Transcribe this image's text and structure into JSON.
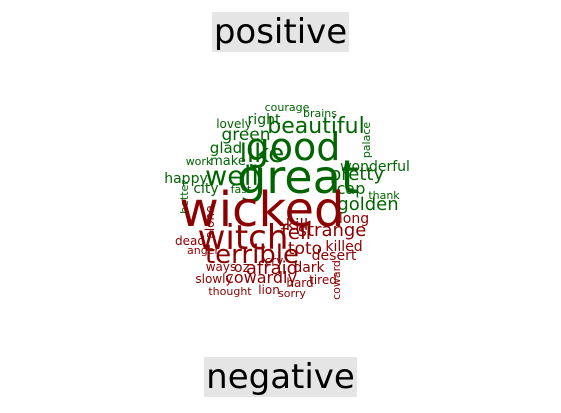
{
  "labels": {
    "positive": "positive",
    "negative": "negative"
  },
  "colors": {
    "positive": "#006400",
    "negative": "#8b0000",
    "label_bg": "#e5e5e5"
  },
  "words": [
    {
      "text": "great",
      "sentiment": "positive"
    },
    {
      "text": "good",
      "sentiment": "positive"
    },
    {
      "text": "well",
      "sentiment": "positive"
    },
    {
      "text": "like",
      "sentiment": "positive"
    },
    {
      "text": "beautiful",
      "sentiment": "positive"
    },
    {
      "text": "pretty",
      "sentiment": "positive"
    },
    {
      "text": "golden",
      "sentiment": "positive"
    },
    {
      "text": "wonderful",
      "sentiment": "positive"
    },
    {
      "text": "green",
      "sentiment": "positive"
    },
    {
      "text": "right",
      "sentiment": "positive"
    },
    {
      "text": "glad",
      "sentiment": "positive"
    },
    {
      "text": "happy",
      "sentiment": "positive"
    },
    {
      "text": "cap",
      "sentiment": "positive"
    },
    {
      "text": "city",
      "sentiment": "positive"
    },
    {
      "text": "make",
      "sentiment": "positive"
    },
    {
      "text": "lovely",
      "sentiment": "positive"
    },
    {
      "text": "courage",
      "sentiment": "positive"
    },
    {
      "text": "brains",
      "sentiment": "positive"
    },
    {
      "text": "palace",
      "sentiment": "positive"
    },
    {
      "text": "thank",
      "sentiment": "positive"
    },
    {
      "text": "work",
      "sentiment": "positive"
    },
    {
      "text": "fast",
      "sentiment": "positive"
    },
    {
      "text": "better",
      "sentiment": "positive"
    },
    {
      "text": "wicked",
      "sentiment": "negative"
    },
    {
      "text": "witch",
      "sentiment": "negative"
    },
    {
      "text": "terrible",
      "sentiment": "negative"
    },
    {
      "text": "strange",
      "sentiment": "negative"
    },
    {
      "text": "afraid",
      "sentiment": "negative"
    },
    {
      "text": "cowardly",
      "sentiment": "negative"
    },
    {
      "text": "killed",
      "sentiment": "negative"
    },
    {
      "text": "desert",
      "sentiment": "negative"
    },
    {
      "text": "dark",
      "sentiment": "negative"
    },
    {
      "text": "toto",
      "sentiment": "negative"
    },
    {
      "text": "long",
      "sentiment": "negative"
    },
    {
      "text": "fell",
      "sentiment": "negative"
    },
    {
      "text": "kill",
      "sentiment": "negative"
    },
    {
      "text": "alone",
      "sentiment": "negative"
    },
    {
      "text": "dead",
      "sentiment": "negative"
    },
    {
      "text": "anger",
      "sentiment": "negative"
    },
    {
      "text": "oz",
      "sentiment": "negative"
    },
    {
      "text": "cry",
      "sentiment": "negative"
    },
    {
      "text": "ways",
      "sentiment": "negative"
    },
    {
      "text": "slowly",
      "sentiment": "negative"
    },
    {
      "text": "hard",
      "sentiment": "negative"
    },
    {
      "text": "tired",
      "sentiment": "negative"
    },
    {
      "text": "thought",
      "sentiment": "negative"
    },
    {
      "text": "lion",
      "sentiment": "negative"
    },
    {
      "text": "sorry",
      "sentiment": "negative"
    },
    {
      "text": "coward",
      "sentiment": "negative"
    }
  ]
}
